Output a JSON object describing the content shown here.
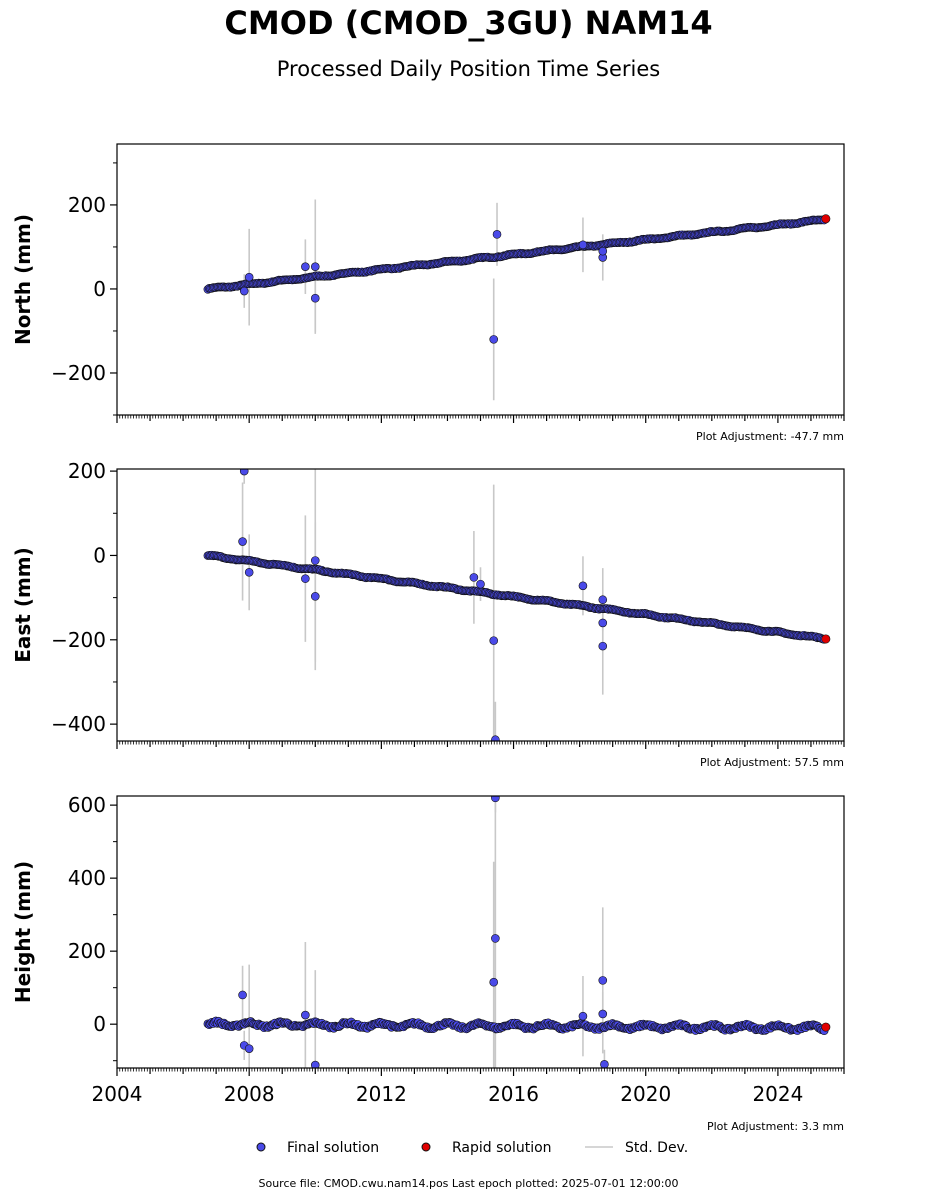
{
  "header": {
    "title": "CMOD (CMOD_3GU) NAM14",
    "subtitle": "Processed Daily Position Time Series"
  },
  "legend": {
    "final": "Final solution",
    "rapid": "Rapid solution",
    "std": "Std. Dev."
  },
  "footer": {
    "source": "Source file: CMOD.cwu.nam14.pos  Last epoch plotted: 2025-07-01 12:00:00"
  },
  "colors": {
    "final": "#4a4ae8",
    "rapid": "#e00000",
    "std": "#c8c8c8",
    "edge": "#111111"
  },
  "chart_data": [
    {
      "type": "scatter",
      "ylabel": "North (mm)",
      "adjustment": "Plot Adjustment: -47.7 mm",
      "xlim": [
        2004,
        2026
      ],
      "ylim": [
        -300,
        345
      ],
      "yticks": [
        -200,
        0,
        200
      ],
      "trend": {
        "x0": 2006.75,
        "y0": 0,
        "x1": 2025.4,
        "y1": 165
      },
      "outliers": [
        {
          "x": 2007.85,
          "y": -5,
          "err": 40
        },
        {
          "x": 2008.0,
          "y": 28,
          "err": 115
        },
        {
          "x": 2009.7,
          "y": 53,
          "err": 65
        },
        {
          "x": 2010.0,
          "y": 53,
          "err": 160
        },
        {
          "x": 2010.0,
          "y": -22,
          "err": 80
        },
        {
          "x": 2015.4,
          "y": -120,
          "err": 145
        },
        {
          "x": 2015.5,
          "y": 130,
          "err": 75
        },
        {
          "x": 2018.1,
          "y": 105,
          "err": 65
        },
        {
          "x": 2018.7,
          "y": 75,
          "err": 55
        },
        {
          "x": 2018.7,
          "y": 90,
          "err": 30
        }
      ],
      "rapid": [
        {
          "x": 2025.45,
          "y": 167
        }
      ]
    },
    {
      "type": "scatter",
      "ylabel": "East (mm)",
      "adjustment": "Plot Adjustment: 57.5 mm",
      "xlim": [
        2004,
        2026
      ],
      "ylim": [
        -440,
        205
      ],
      "yticks": [
        -400,
        -200,
        0,
        200
      ],
      "trend": {
        "x0": 2006.75,
        "y0": 0,
        "x1": 2025.4,
        "y1": -197
      },
      "outliers": [
        {
          "x": 2007.8,
          "y": 33,
          "err": 140
        },
        {
          "x": 2007.85,
          "y": 200,
          "err": 30
        },
        {
          "x": 2008.0,
          "y": -40,
          "err": 90
        },
        {
          "x": 2009.7,
          "y": -55,
          "err": 150
        },
        {
          "x": 2010.0,
          "y": -12,
          "err": 240
        },
        {
          "x": 2010.0,
          "y": -97,
          "err": 175
        },
        {
          "x": 2014.8,
          "y": -52,
          "err": 110
        },
        {
          "x": 2015.0,
          "y": -68,
          "err": 40
        },
        {
          "x": 2015.4,
          "y": -202,
          "err": 370
        },
        {
          "x": 2015.45,
          "y": -437,
          "err": 90
        },
        {
          "x": 2018.1,
          "y": -72,
          "err": 70
        },
        {
          "x": 2018.7,
          "y": -105,
          "err": 75
        },
        {
          "x": 2018.7,
          "y": -160,
          "err": 60
        },
        {
          "x": 2018.7,
          "y": -215,
          "err": 115
        }
      ],
      "rapid": [
        {
          "x": 2025.45,
          "y": -198
        }
      ]
    },
    {
      "type": "scatter",
      "ylabel": "Height (mm)",
      "adjustment": "Plot Adjustment: 3.3 mm",
      "xlim": [
        2004,
        2026
      ],
      "ylim": [
        -120,
        625
      ],
      "yticks": [
        0,
        200,
        400,
        600
      ],
      "xticks": [
        2004,
        2008,
        2012,
        2016,
        2020,
        2024
      ],
      "trend": {
        "x0": 2006.75,
        "y0": 0,
        "x1": 2025.4,
        "y1": -10
      },
      "outliers": [
        {
          "x": 2007.8,
          "y": 80,
          "err": 80
        },
        {
          "x": 2007.85,
          "y": -58,
          "err": 40
        },
        {
          "x": 2008.0,
          "y": -67,
          "err": 230
        },
        {
          "x": 2009.7,
          "y": 25,
          "err": 200
        },
        {
          "x": 2010.0,
          "y": -112,
          "err": 260
        },
        {
          "x": 2015.4,
          "y": 115,
          "err": 330
        },
        {
          "x": 2015.45,
          "y": 235,
          "err": 380
        },
        {
          "x": 2015.45,
          "y": 620,
          "err": 40
        },
        {
          "x": 2018.1,
          "y": 22,
          "err": 110
        },
        {
          "x": 2018.7,
          "y": 120,
          "err": 200
        },
        {
          "x": 2018.7,
          "y": 28,
          "err": 60
        },
        {
          "x": 2018.75,
          "y": -110,
          "err": 40
        }
      ],
      "rapid": [
        {
          "x": 2025.45,
          "y": -8
        }
      ]
    }
  ]
}
